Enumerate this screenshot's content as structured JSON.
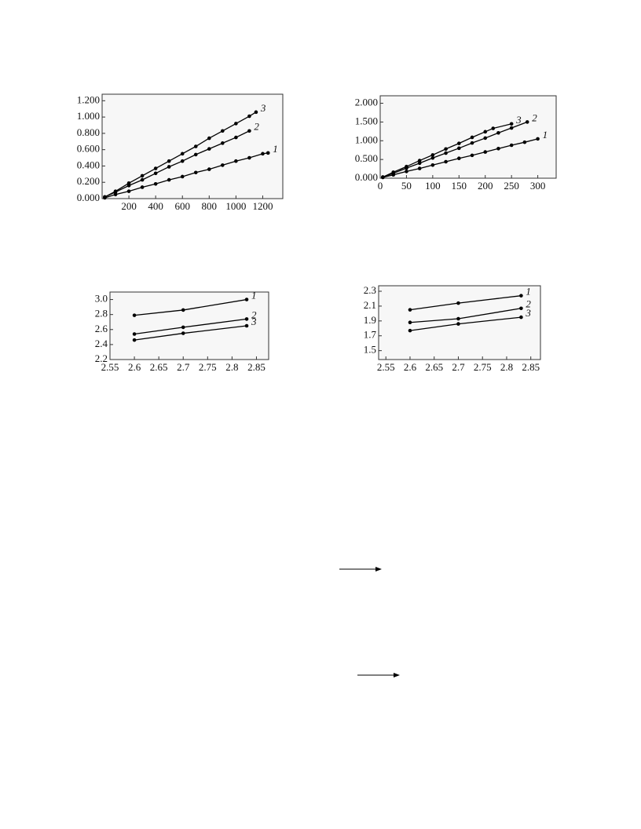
{
  "chart_data": [
    {
      "type": "line",
      "xlim": [
        0,
        1350
      ],
      "ylim": [
        0,
        1.28
      ],
      "xticks": [
        200,
        400,
        600,
        800,
        1000,
        1200
      ],
      "yticks": [
        {
          "value": 0,
          "label": "0.000"
        },
        {
          "value": 0.2,
          "label": "0.200"
        },
        {
          "value": 0.4,
          "label": "0.400"
        },
        {
          "value": 0.6,
          "label": "0.600"
        },
        {
          "value": 0.8,
          "label": "0.800"
        },
        {
          "value": 1.0,
          "label": "1.000"
        },
        {
          "value": 1.2,
          "label": "1.200"
        }
      ],
      "series": [
        {
          "name": "1",
          "color": "#000000",
          "x": [
            20,
            100,
            200,
            300,
            400,
            500,
            600,
            700,
            800,
            900,
            1000,
            1100,
            1200,
            1240
          ],
          "values": [
            0.01,
            0.05,
            0.09,
            0.14,
            0.18,
            0.23,
            0.27,
            0.32,
            0.36,
            0.41,
            0.46,
            0.5,
            0.55,
            0.56
          ]
        },
        {
          "name": "2",
          "color": "#000000",
          "x": [
            20,
            100,
            200,
            300,
            400,
            500,
            600,
            700,
            800,
            900,
            1000,
            1100
          ],
          "values": [
            0.02,
            0.08,
            0.16,
            0.23,
            0.31,
            0.39,
            0.46,
            0.54,
            0.61,
            0.68,
            0.75,
            0.83
          ]
        },
        {
          "name": "3",
          "color": "#000000",
          "x": [
            20,
            100,
            200,
            300,
            400,
            500,
            600,
            700,
            800,
            900,
            1000,
            1100,
            1150
          ],
          "values": [
            0.02,
            0.09,
            0.19,
            0.28,
            0.37,
            0.46,
            0.55,
            0.64,
            0.74,
            0.83,
            0.92,
            1.01,
            1.06
          ]
        }
      ]
    },
    {
      "type": "line",
      "xlim": [
        0,
        335
      ],
      "ylim": [
        0,
        2.2
      ],
      "xticks": [
        0,
        50,
        100,
        150,
        200,
        250,
        300
      ],
      "yticks": [
        {
          "value": 0,
          "label": "0.000"
        },
        {
          "value": 0.5,
          "label": "0.500"
        },
        {
          "value": 1.0,
          "label": "1.000"
        },
        {
          "value": 1.5,
          "label": "1.500"
        },
        {
          "value": 2.0,
          "label": "2.000"
        }
      ],
      "series": [
        {
          "name": "1",
          "color": "#000000",
          "x": [
            5,
            25,
            50,
            75,
            100,
            125,
            150,
            175,
            200,
            225,
            250,
            275,
            300
          ],
          "values": [
            0.02,
            0.09,
            0.18,
            0.26,
            0.35,
            0.44,
            0.53,
            0.61,
            0.7,
            0.79,
            0.88,
            0.96,
            1.05
          ]
        },
        {
          "name": "2",
          "color": "#000000",
          "x": [
            5,
            25,
            50,
            75,
            100,
            125,
            150,
            175,
            200,
            225,
            250,
            280
          ],
          "values": [
            0.03,
            0.13,
            0.27,
            0.4,
            0.54,
            0.67,
            0.8,
            0.94,
            1.07,
            1.21,
            1.34,
            1.5
          ]
        },
        {
          "name": "3",
          "color": "#000000",
          "x": [
            5,
            25,
            50,
            75,
            100,
            125,
            150,
            175,
            200,
            215,
            250
          ],
          "values": [
            0.03,
            0.16,
            0.31,
            0.47,
            0.62,
            0.78,
            0.93,
            1.09,
            1.24,
            1.33,
            1.45
          ]
        }
      ]
    },
    {
      "type": "line",
      "xlim": [
        2.55,
        2.875
      ],
      "ylim": [
        2.2,
        3.1
      ],
      "xticks": [
        2.55,
        2.6,
        2.65,
        2.7,
        2.75,
        2.8,
        2.85
      ],
      "yticks": [
        2.2,
        2.4,
        2.6,
        2.8,
        {
          "value": 3.0,
          "label": "3.0"
        }
      ],
      "series": [
        {
          "name": "1",
          "color": "#000000",
          "x": [
            2.6,
            2.7,
            2.83
          ],
          "values": [
            2.79,
            2.86,
            3.0
          ]
        },
        {
          "name": "2",
          "color": "#000000",
          "x": [
            2.6,
            2.7,
            2.83
          ],
          "values": [
            2.54,
            2.63,
            2.74
          ]
        },
        {
          "name": "3",
          "color": "#000000",
          "x": [
            2.6,
            2.7,
            2.83
          ],
          "values": [
            2.46,
            2.55,
            2.65
          ]
        }
      ]
    },
    {
      "type": "line",
      "xlim": [
        2.535,
        2.87
      ],
      "ylim": [
        1.38,
        2.374
      ],
      "xticks": [
        2.55,
        2.6,
        2.65,
        2.7,
        2.75,
        2.8,
        2.85
      ],
      "yticks": [
        1.5,
        1.7,
        1.9,
        2.1,
        2.3
      ],
      "series": [
        {
          "name": "1",
          "color": "#000000",
          "x": [
            2.6,
            2.7,
            2.83
          ],
          "values": [
            2.05,
            2.14,
            2.24
          ]
        },
        {
          "name": "2",
          "color": "#000000",
          "x": [
            2.6,
            2.7,
            2.83
          ],
          "values": [
            1.88,
            1.93,
            2.07
          ]
        },
        {
          "name": "3",
          "color": "#000000",
          "x": [
            2.6,
            2.7,
            2.83
          ],
          "values": [
            1.77,
            1.86,
            1.95
          ]
        }
      ]
    }
  ]
}
